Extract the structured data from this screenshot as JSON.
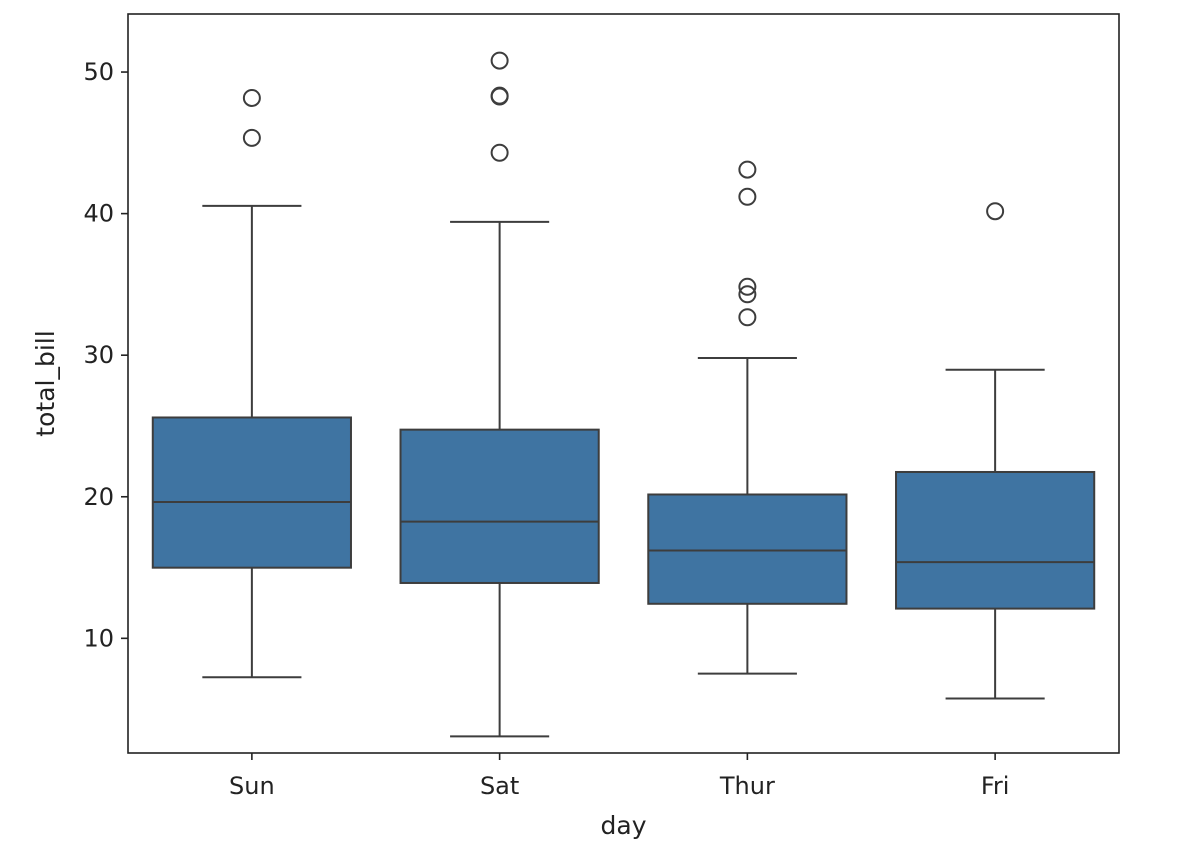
{
  "chart_data": {
    "type": "box",
    "title": "",
    "xlabel": "day",
    "ylabel": "total_bill",
    "categories": [
      "Sun",
      "Sat",
      "Thur",
      "Fri"
    ],
    "ylim": [
      1.9,
      54.1
    ],
    "yticks": [
      10,
      20,
      30,
      40,
      50
    ],
    "ytick_labels": [
      "10",
      "20",
      "30",
      "40",
      "50"
    ],
    "grid": false,
    "legend": "none",
    "box_color": "#3f74a2",
    "line_color": "#3d3d3d",
    "boxes": [
      {
        "category": "Sun",
        "whisker_low": 7.25,
        "q1": 14.99,
        "median": 19.63,
        "q3": 25.6,
        "whisker_high": 40.55,
        "outliers": [
          45.35,
          48.17
        ]
      },
      {
        "category": "Sat",
        "whisker_low": 3.07,
        "q1": 13.91,
        "median": 18.24,
        "q3": 24.74,
        "whisker_high": 39.42,
        "outliers": [
          44.3,
          48.27,
          48.33,
          50.81
        ]
      },
      {
        "category": "Thur",
        "whisker_low": 7.51,
        "q1": 12.44,
        "median": 16.2,
        "q3": 20.16,
        "whisker_high": 29.8,
        "outliers": [
          32.68,
          34.3,
          34.83,
          41.19,
          43.11
        ]
      },
      {
        "category": "Fri",
        "whisker_low": 5.75,
        "q1": 12.1,
        "median": 15.38,
        "q3": 21.75,
        "whisker_high": 28.97,
        "outliers": [
          40.17
        ]
      }
    ]
  }
}
